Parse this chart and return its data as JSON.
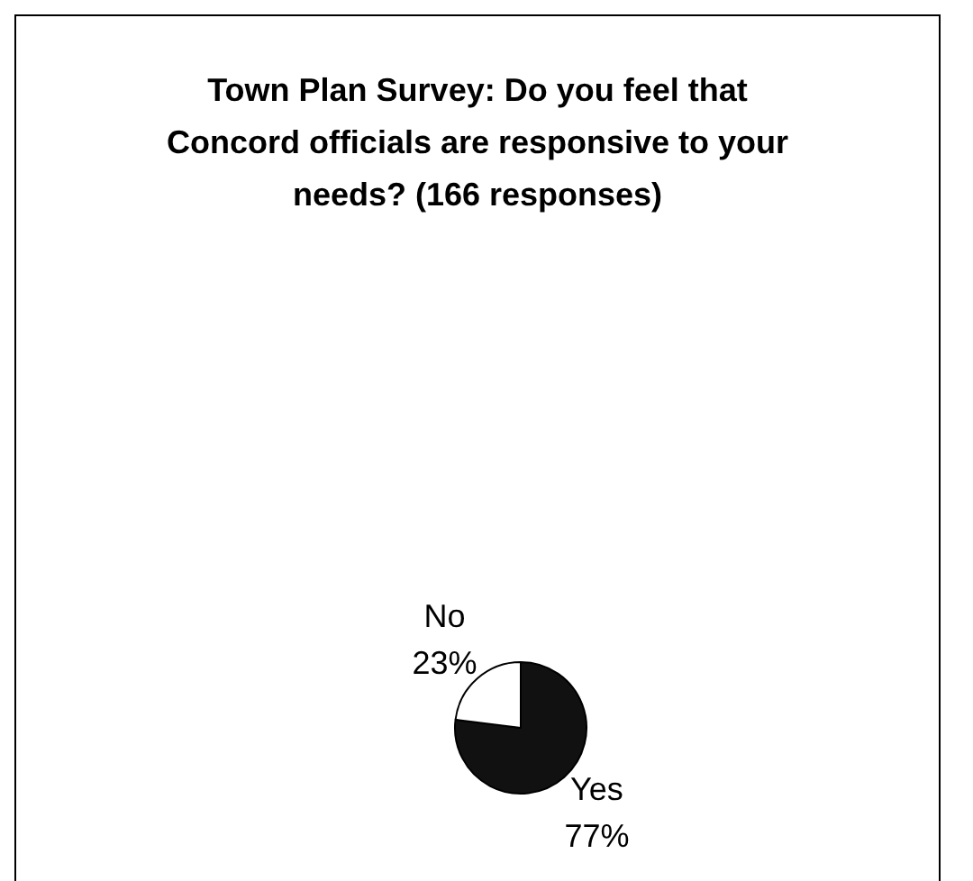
{
  "chart_data": {
    "type": "pie",
    "title": "Town Plan Survey: Do you feel that Concord officials are responsive to your needs? (166 responses)",
    "categories": [
      "Yes",
      "No"
    ],
    "values": [
      77,
      23
    ],
    "colors": [
      "#111111",
      "#ffffff"
    ],
    "value_labels": [
      "77%",
      "23%"
    ],
    "legend": false
  }
}
